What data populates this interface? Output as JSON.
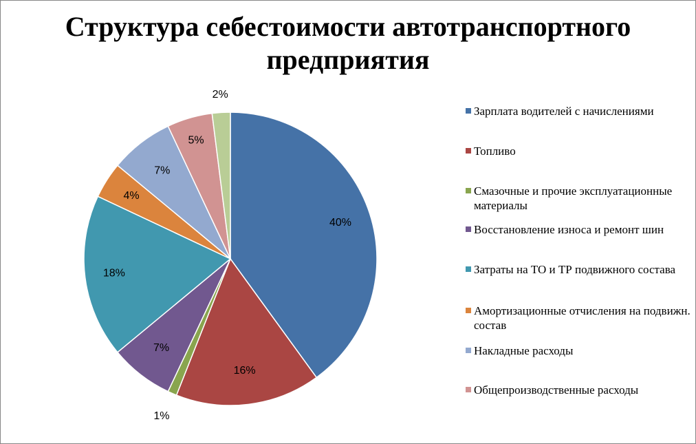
{
  "chart_data": {
    "type": "pie",
    "title": "Структура себестоимости автотранспортного\nпредприятия",
    "start_angle_deg": 0,
    "direction": "clockwise",
    "legend_position": "right",
    "slices": [
      {
        "name": "Зарплата водителей с начислениями",
        "value": 40,
        "label": "40%",
        "color": "#4572A7"
      },
      {
        "name": "Топливо",
        "value": 16,
        "label": "16%",
        "color": "#AA4643"
      },
      {
        "name": "Смазочные и прочие эксплуатационные материалы",
        "value": 1,
        "label": "1%",
        "color": "#89A54E"
      },
      {
        "name": "Восстановление износа и ремонт шин",
        "value": 7,
        "label": "7%",
        "color": "#71588F"
      },
      {
        "name": "Затраты на ТО и ТР подвижного состава",
        "value": 18,
        "label": "18%",
        "color": "#4198AF"
      },
      {
        "name": "Амортизационные отчисления на подвижн. состав",
        "value": 4,
        "label": "4%",
        "color": "#DB843D"
      },
      {
        "name": "Накладные расходы",
        "value": 7,
        "label": "7%",
        "color": "#93A9CF"
      },
      {
        "name": "Общепроизводственные расходы",
        "value": 5,
        "label": "5%",
        "color": "#D19392"
      },
      {
        "name": "",
        "value": 2,
        "label": "2%",
        "color": "#B9CD96"
      }
    ]
  }
}
